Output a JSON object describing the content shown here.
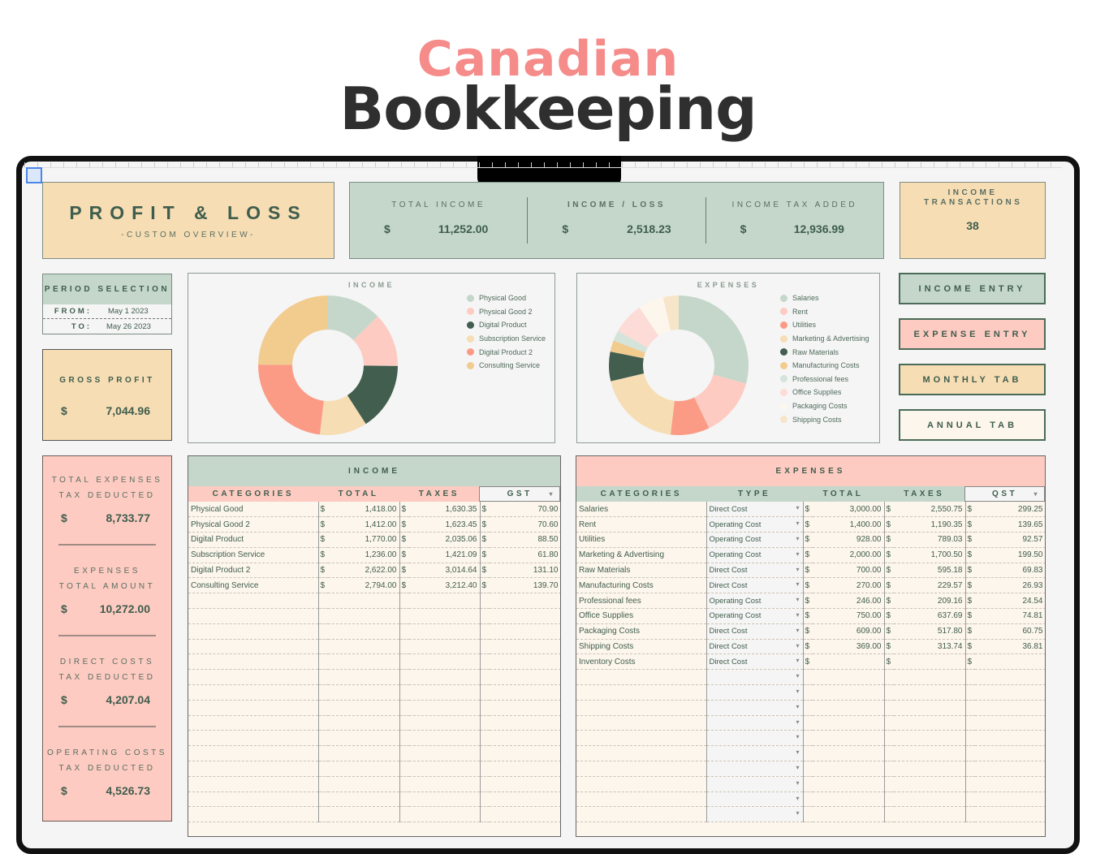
{
  "title": {
    "line1": "Canadian",
    "line2": "Bookkeeping"
  },
  "header": {
    "title": "PROFIT & LOSS",
    "subtitle": "-CUSTOM OVERVIEW-"
  },
  "kpis": {
    "total_income": {
      "label": "TOTAL INCOME",
      "currency": "$",
      "value": "11,252.00"
    },
    "income_loss": {
      "label": "INCOME / LOSS",
      "currency": "$",
      "value": "2,518.23"
    },
    "income_tax_added": {
      "label": "INCOME TAX ADDED",
      "currency": "$",
      "value": "12,936.99"
    },
    "income_transactions": {
      "label": "INCOME TRANSACTIONS",
      "value": "38"
    }
  },
  "period": {
    "title": "PERIOD SELECTION",
    "from_label": "FROM:",
    "from": "May 1 2023",
    "to_label": "TO:",
    "to": "May 26 2023"
  },
  "gross_profit": {
    "label": "GROSS PROFIT",
    "currency": "$",
    "value": "7,044.96"
  },
  "side": [
    {
      "l1": "TOTAL EXPENSES",
      "l2": "TAX DEDUCTED",
      "currency": "$",
      "value": "8,733.77"
    },
    {
      "l1": "EXPENSES",
      "l2": "TOTAL AMOUNT",
      "currency": "$",
      "value": "10,272.00"
    },
    {
      "l1": "DIRECT COSTS",
      "l2": "TAX DEDUCTED",
      "currency": "$",
      "value": "4,207.04"
    },
    {
      "l1": "OPERATING COSTS",
      "l2": "TAX DEDUCTED",
      "currency": "$",
      "value": "4,526.73"
    }
  ],
  "buttons": {
    "income_entry": "INCOME ENTRY",
    "expense_entry": "EXPENSE ENTRY",
    "monthly_tab": "MONTHLY TAB",
    "annual_tab": "ANNUAL TAB"
  },
  "chart_data": [
    {
      "type": "pie",
      "title": "INCOME",
      "categories": [
        "Physical Good",
        "Physical Good 2",
        "Digital Product",
        "Subscription Service",
        "Digital Product 2",
        "Consulting Service"
      ],
      "values": [
        1418,
        1412,
        1770,
        1236,
        2622,
        2794
      ],
      "colors": [
        "#c4d7ca",
        "#fdcbc1",
        "#425e4f",
        "#f6ddb4",
        "#fb9b85",
        "#f2cb8f"
      ]
    },
    {
      "type": "pie",
      "title": "EXPENSES",
      "categories": [
        "Salaries",
        "Rent",
        "Utilities",
        "Marketing & Advertising",
        "Raw Materials",
        "Manufacturing Costs",
        "Professional fees",
        "Office Supplies",
        "Packaging Costs",
        "Shipping Costs"
      ],
      "values": [
        3000,
        1400,
        928,
        2000,
        700,
        270,
        246,
        750,
        609,
        369
      ],
      "colors": [
        "#c4d7ca",
        "#fdcbc1",
        "#fb9b85",
        "#f6ddb4",
        "#425e4f",
        "#f2cb8f",
        "#d4e4da",
        "#fddbd6",
        "#fdf6ec",
        "#f6e5c9"
      ]
    }
  ],
  "income_table": {
    "title": "INCOME",
    "columns": [
      "CATEGORIES",
      "TOTAL",
      "TAXES",
      "GST"
    ],
    "currency": "$",
    "rows": [
      [
        "Physical Good",
        "1,418.00",
        "1,630.35",
        "70.90"
      ],
      [
        "Physical Good 2",
        "1,412.00",
        "1,623.45",
        "70.60"
      ],
      [
        "Digital Product",
        "1,770.00",
        "2,035.06",
        "88.50"
      ],
      [
        "Subscription Service",
        "1,236.00",
        "1,421.09",
        "61.80"
      ],
      [
        "Digital Product 2",
        "2,622.00",
        "3,014.64",
        "131.10"
      ],
      [
        "Consulting Service",
        "2,794.00",
        "3,212.40",
        "139.70"
      ]
    ]
  },
  "expenses_table": {
    "title": "EXPENSES",
    "columns": [
      "CATEGORIES",
      "TYPE",
      "TOTAL",
      "TAXES",
      "QST"
    ],
    "currency": "$",
    "rows": [
      [
        "Salaries",
        "Direct Cost",
        "3,000.00",
        "2,550.75",
        "299.25"
      ],
      [
        "Rent",
        "Operating Cost",
        "1,400.00",
        "1,190.35",
        "139.65"
      ],
      [
        "Utilities",
        "Operating Cost",
        "928.00",
        "789.03",
        "92.57"
      ],
      [
        "Marketing & Advertising",
        "Operating Cost",
        "2,000.00",
        "1,700.50",
        "199.50"
      ],
      [
        "Raw Materials",
        "Direct Cost",
        "700.00",
        "595.18",
        "69.83"
      ],
      [
        "Manufacturing Costs",
        "Direct Cost",
        "270.00",
        "229.57",
        "26.93"
      ],
      [
        "Professional fees",
        "Operating Cost",
        "246.00",
        "209.16",
        "24.54"
      ],
      [
        "Office Supplies",
        "Operating Cost",
        "750.00",
        "637.69",
        "74.81"
      ],
      [
        "Packaging Costs",
        "Direct Cost",
        "609.00",
        "517.80",
        "60.75"
      ],
      [
        "Shipping Costs",
        "Direct Cost",
        "369.00",
        "313.74",
        "36.81"
      ],
      [
        "Inventory Costs",
        "Direct Cost",
        "",
        "",
        ""
      ]
    ]
  }
}
